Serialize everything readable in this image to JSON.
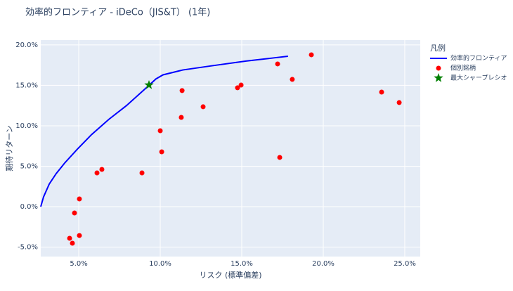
{
  "chart_data": {
    "type": "scatter",
    "title": "効率的フロンティア - iDeCo（JIS&T） (1年)",
    "x_label": "リスク (標準偏差)",
    "y_label": "期待リターン",
    "legend_title": "凡例",
    "legend_position": "outside-right",
    "grid": true,
    "background": "#e5ecf6",
    "xlim": [
      2.67,
      25.95
    ],
    "ylim": [
      -6.17,
      20.6
    ],
    "xticks": [
      {
        "value": 5,
        "label": "5.0%"
      },
      {
        "value": 10,
        "label": "10.0%"
      },
      {
        "value": 15,
        "label": "15.0%"
      },
      {
        "value": 20,
        "label": "20.0%"
      },
      {
        "value": 25,
        "label": "25.0%"
      }
    ],
    "yticks": [
      {
        "value": -5,
        "label": "-5.0%"
      },
      {
        "value": 0,
        "label": "0.0%"
      },
      {
        "value": 5,
        "label": "5.0%"
      },
      {
        "value": 10,
        "label": "10.0%"
      },
      {
        "value": 15,
        "label": "15.0%"
      },
      {
        "value": 20,
        "label": "20.0%"
      }
    ],
    "series": [
      {
        "name": "効率的フロンティア",
        "color": "#0000ff",
        "mode": "line",
        "x": [
          2.67,
          2.84,
          3.19,
          3.62,
          4.14,
          4.91,
          5.78,
          6.85,
          7.93,
          9.31,
          9.74,
          10.17,
          11.38,
          13.1,
          15.26,
          16.98,
          17.84
        ],
        "y": [
          0,
          1.2,
          2.8,
          4.1,
          5.4,
          7.1,
          8.9,
          10.8,
          12.5,
          15.0,
          15.8,
          16.3,
          16.9,
          17.4,
          18.0,
          18.4,
          18.6
        ]
      },
      {
        "name": "個別銘柄",
        "color": "#ff0000",
        "mode": "markers",
        "x": [
          4.44,
          4.61,
          5.04,
          4.74,
          5.04,
          6.12,
          6.42,
          8.88,
          10.0,
          10.09,
          11.29,
          11.34,
          12.63,
          14.74,
          14.96,
          17.2,
          17.33,
          18.1,
          19.27,
          23.58,
          24.66
        ],
        "y": [
          -3.91,
          -4.52,
          -3.57,
          -0.78,
          0.96,
          4.17,
          4.61,
          4.17,
          9.39,
          6.78,
          11.04,
          14.35,
          12.35,
          14.7,
          15.04,
          17.65,
          6.09,
          15.74,
          18.78,
          14.17,
          12.87
        ]
      },
      {
        "name": "最大シャープレシオ",
        "color": "#008000",
        "mode": "star",
        "x": [
          9.31
        ],
        "y": [
          15.04
        ]
      }
    ]
  }
}
